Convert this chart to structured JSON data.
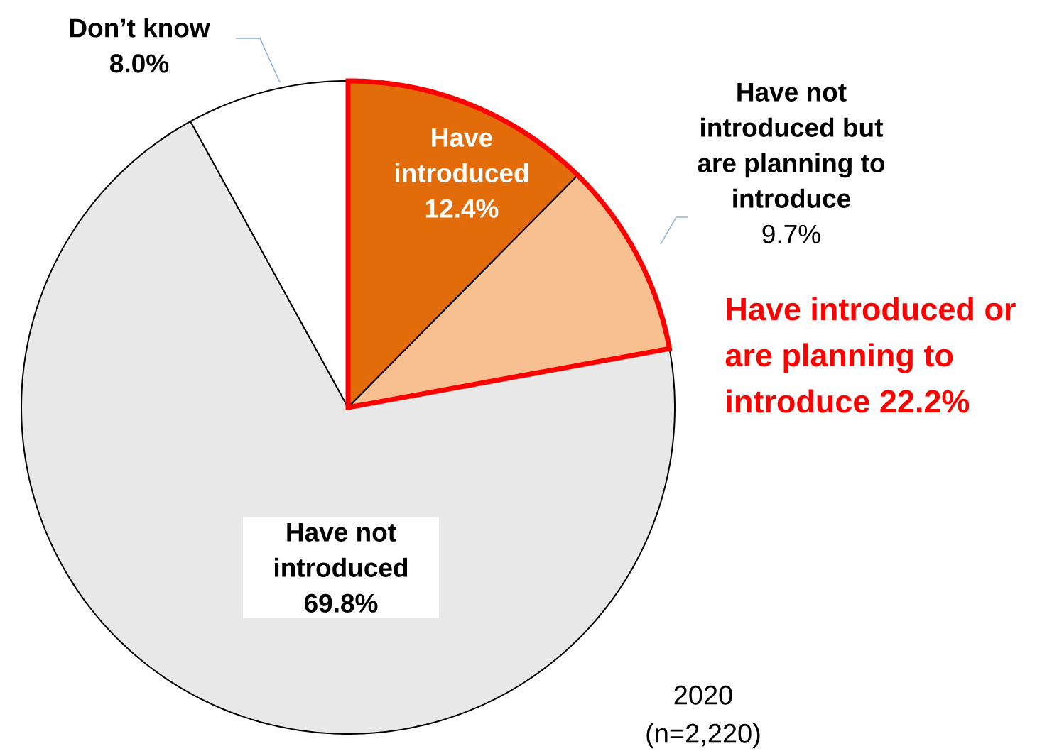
{
  "chart_data": {
    "type": "pie",
    "categories": [
      "Have introduced",
      "Have not introduced but are planning to introduce",
      "Have not introduced",
      "Don’t know"
    ],
    "values": [
      12.4,
      9.7,
      69.8,
      8.0
    ],
    "value_labels": [
      "12.4%",
      "9.7%",
      "69.8%",
      "8.0%"
    ],
    "colors": [
      "#e26b0a",
      "#f8c090",
      "#e8e8e8",
      "#ffffff"
    ],
    "annotations": [
      "Have introduced or are planning to introduce 22.2%",
      "2020 (n=2,220)"
    ]
  }
}
